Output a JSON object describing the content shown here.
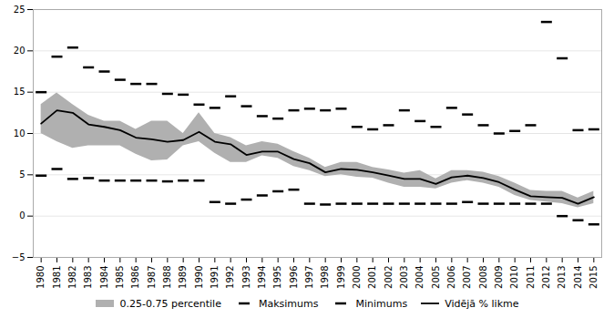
{
  "chart_data": {
    "type": "line",
    "x": [
      1980,
      1981,
      1982,
      1983,
      1984,
      1985,
      1986,
      1987,
      1988,
      1989,
      1990,
      1991,
      1992,
      1993,
      1994,
      1995,
      1996,
      1997,
      1998,
      1999,
      2000,
      2001,
      2002,
      2003,
      2004,
      2005,
      2006,
      2007,
      2008,
      2009,
      2010,
      2011,
      2012,
      2013,
      2014,
      2015
    ],
    "xlim": [
      1979.5,
      2015.5
    ],
    "xticks": [
      1980,
      1981,
      1982,
      1983,
      1984,
      1985,
      1986,
      1987,
      1988,
      1989,
      1990,
      1991,
      1992,
      1993,
      1994,
      1995,
      1996,
      1997,
      1998,
      1999,
      2000,
      2001,
      2002,
      2003,
      2004,
      2005,
      2006,
      2007,
      2008,
      2009,
      2010,
      2011,
      2012,
      2013,
      2014,
      2015
    ],
    "ylim": [
      -5,
      25
    ],
    "yticks": [
      -5,
      0,
      5,
      10,
      15,
      20,
      25
    ],
    "grid": true,
    "legend": "bottom",
    "series": [
      {
        "name": "0.25-0.75 percentile",
        "type": "band",
        "color": "#b0b0b0",
        "lower": [
          10.0,
          9.0,
          8.2,
          8.5,
          8.5,
          8.5,
          7.5,
          6.7,
          6.8,
          8.5,
          9.0,
          7.6,
          6.5,
          6.5,
          7.3,
          7.0,
          6.0,
          5.5,
          4.8,
          5.0,
          4.7,
          4.6,
          4.0,
          3.5,
          3.5,
          3.3,
          4.0,
          4.3,
          4.0,
          3.5,
          2.5,
          1.9,
          1.7,
          1.5,
          1.0,
          1.5
        ],
        "upper": [
          13.5,
          14.9,
          13.5,
          12.2,
          11.5,
          11.5,
          10.5,
          11.5,
          11.5,
          10.0,
          12.5,
          10.0,
          9.5,
          8.5,
          9.0,
          8.7,
          7.8,
          7.0,
          5.9,
          6.5,
          6.5,
          5.9,
          5.6,
          5.2,
          5.5,
          4.5,
          5.5,
          5.5,
          5.3,
          4.8,
          4.0,
          3.1,
          3.0,
          3.0,
          2.2,
          3.0
        ]
      },
      {
        "name": "Maksimums",
        "type": "scatter",
        "marker": "hline",
        "color": "#000000",
        "values": [
          15.0,
          19.3,
          20.4,
          18.0,
          17.5,
          16.5,
          16.0,
          16.0,
          14.8,
          14.7,
          13.5,
          13.1,
          14.5,
          13.3,
          12.1,
          11.8,
          12.8,
          13.0,
          12.8,
          13.0,
          10.8,
          10.5,
          11.0,
          12.8,
          11.5,
          10.8,
          13.1,
          12.3,
          11.0,
          10.0,
          10.3,
          11.0,
          23.5,
          19.1,
          10.4,
          10.5
        ]
      },
      {
        "name": "Minimums",
        "type": "scatter",
        "marker": "hline",
        "color": "#000000",
        "values": [
          4.9,
          5.7,
          4.5,
          4.6,
          4.3,
          4.3,
          4.3,
          4.3,
          4.2,
          4.3,
          4.3,
          1.7,
          1.5,
          2.0,
          2.5,
          3.0,
          3.2,
          1.5,
          1.4,
          1.5,
          1.5,
          1.5,
          1.5,
          1.5,
          1.5,
          1.5,
          1.5,
          1.7,
          1.5,
          1.5,
          1.5,
          1.5,
          1.5,
          0.0,
          -0.5,
          -1.0
        ]
      },
      {
        "name": "Vidējā % likme",
        "type": "line",
        "color": "#000000",
        "values": [
          11.2,
          12.8,
          12.5,
          11.1,
          10.8,
          10.4,
          9.5,
          9.3,
          9.0,
          9.2,
          10.2,
          9.0,
          8.7,
          7.4,
          7.8,
          7.8,
          6.9,
          6.4,
          5.3,
          5.7,
          5.6,
          5.3,
          4.9,
          4.5,
          4.5,
          3.9,
          4.7,
          4.9,
          4.6,
          4.1,
          3.2,
          2.4,
          2.3,
          2.2,
          1.5,
          2.3
        ]
      }
    ]
  }
}
